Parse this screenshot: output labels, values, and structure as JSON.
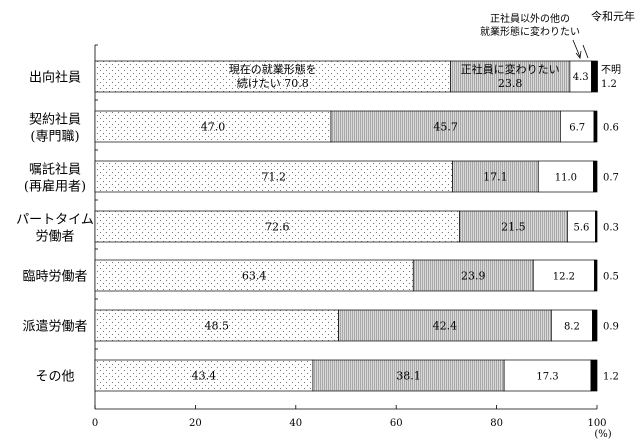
{
  "chart_data": {
    "type": "bar",
    "orientation": "horizontal",
    "stacked": true,
    "title": "令和元年",
    "unit": "(%)",
    "xlim": [
      0,
      100
    ],
    "xticks": [
      "0",
      "20",
      "40",
      "60",
      "80",
      "100"
    ],
    "grid": false,
    "categories": [
      [
        "出向社員"
      ],
      [
        "契約社員",
        "(専門職)"
      ],
      [
        "嘱託社員",
        "(再雇用者)"
      ],
      [
        "パートタイム",
        "労働者"
      ],
      [
        "臨時労働者"
      ],
      [
        "派遣労働者"
      ],
      [
        "その他"
      ]
    ],
    "series": [
      {
        "name": "現在の就業形態を続けたい",
        "pattern": "dots",
        "values": [
          70.8,
          47.0,
          71.2,
          72.6,
          63.4,
          48.5,
          43.4
        ],
        "labels": [
          "70.8",
          "47.0",
          "71.2",
          "72.6",
          "63.4",
          "48.5",
          "43.4"
        ]
      },
      {
        "name": "正社員に変わりたい",
        "pattern": "hatch",
        "values": [
          23.8,
          45.7,
          17.1,
          21.5,
          23.9,
          42.4,
          38.1
        ],
        "labels": [
          "23.8",
          "45.7",
          "17.1",
          "21.5",
          "23.9",
          "42.4",
          "38.1"
        ]
      },
      {
        "name": "正社員以外の他の就業形態に変わりたい",
        "pattern": "white",
        "values": [
          4.3,
          6.7,
          11.0,
          5.6,
          12.2,
          8.2,
          17.3
        ],
        "labels": [
          "4.3",
          "6.7",
          "11.0",
          "5.6",
          "12.2",
          "8.2",
          "17.3"
        ]
      },
      {
        "name": "不明",
        "pattern": "black",
        "values": [
          1.2,
          0.6,
          0.7,
          0.3,
          0.5,
          0.9,
          1.2
        ],
        "labels": [
          "1.2",
          "0.6",
          "0.7",
          "0.3",
          "0.5",
          "0.9",
          "1.2"
        ]
      }
    ],
    "annotations": {
      "series1_first_bar_lines": [
        "現在の就業形態を",
        "続けたい 70.8"
      ],
      "series2_first_bar_lines": [
        "正社員に変わりたい",
        "23.8"
      ],
      "series3_callout_lines": [
        "正社員以外の他の",
        "就業形態に変わりたい"
      ],
      "series4_first_bar_lines": [
        "不明",
        "1.2"
      ]
    }
  }
}
